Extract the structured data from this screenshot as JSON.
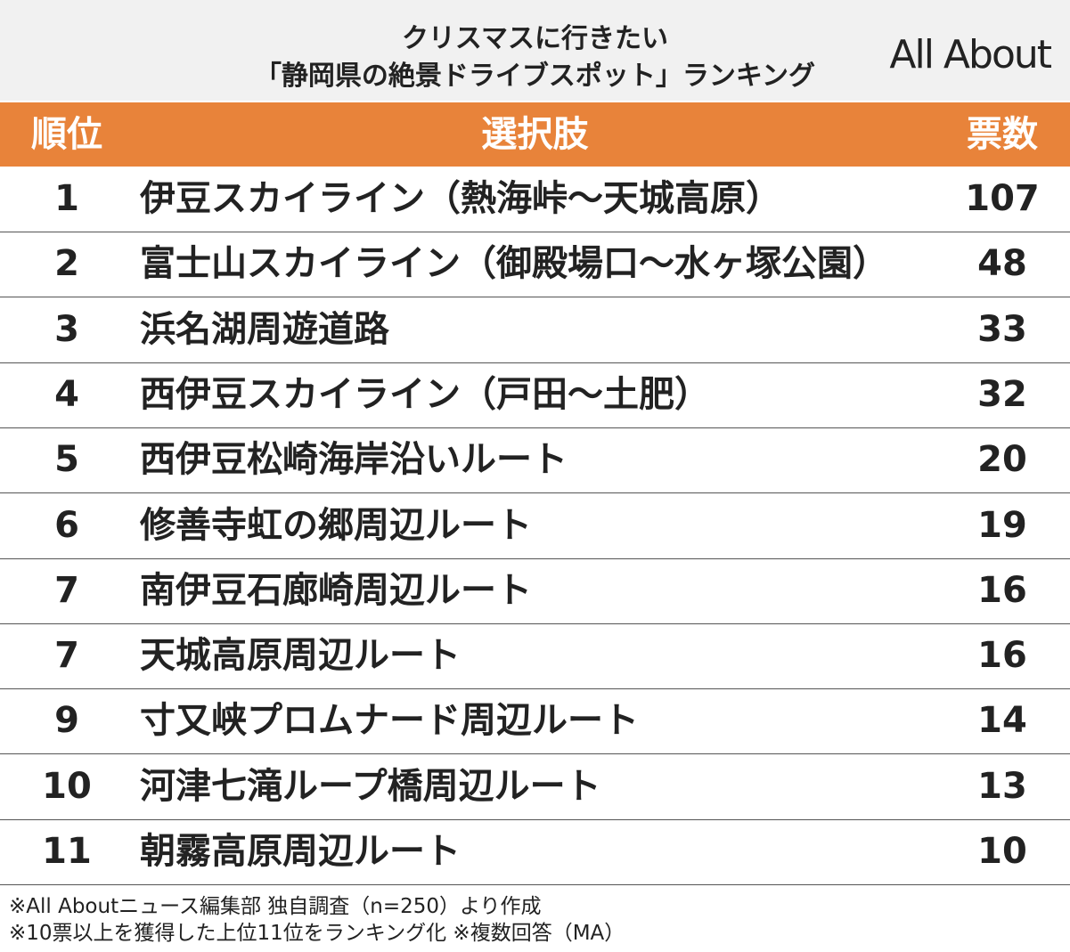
{
  "header": {
    "title_lines": [
      "クリスマスに行きたい",
      "「静岡県の絶景ドライブスポット」ランキング"
    ],
    "logo": "All About"
  },
  "table": {
    "columns": [
      "順位",
      "選択肢",
      "票数"
    ],
    "rows": [
      [
        1,
        "伊豆スカイライン（熱海峠〜天城高原）",
        107
      ],
      [
        2,
        "富士山スカイライン（御殿場口〜水ヶ塚公園）",
        48
      ],
      [
        3,
        "浜名湖周遊道路",
        33
      ],
      [
        4,
        "西伊豆スカイライン（戸田〜土肥）",
        32
      ],
      [
        5,
        "西伊豆松崎海岸沿いルート",
        20
      ],
      [
        6,
        "修善寺虹の郷周辺ルート",
        19
      ],
      [
        7,
        "南伊豆石廊崎周辺ルート",
        16
      ],
      [
        7,
        "天城高原周辺ルート",
        16
      ],
      [
        9,
        "寸又峡プロムナード周辺ルート",
        14
      ],
      [
        10,
        "河津七滝ループ橋周辺ルート",
        13
      ],
      [
        11,
        "朝霧高原周辺ルート",
        10
      ]
    ]
  },
  "footnotes": [
    "※All Aboutニュース編集部 独自調査（n=250）より作成",
    "※10票以上を獲得した上位11位をランキング化 ※複数回答（MA）"
  ]
}
